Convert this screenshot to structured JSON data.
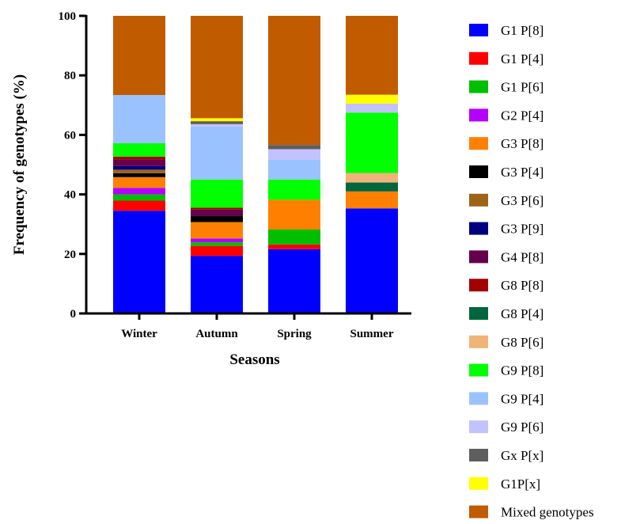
{
  "chart_data": {
    "type": "bar",
    "stacked": true,
    "title": "",
    "xlabel": "Seasons",
    "ylabel": "Frequency of genotypes (%)",
    "ylim": [
      0,
      100
    ],
    "yticks": [
      0,
      20,
      40,
      60,
      80,
      100
    ],
    "categories": [
      "Winter",
      "Autumn",
      "Spring",
      "Summer"
    ],
    "legend_position": "right",
    "grid": false,
    "series": [
      {
        "name": "G1 P[8]",
        "color": "#0000ff",
        "values": [
          34.5,
          19.3,
          21.6,
          35.3
        ]
      },
      {
        "name": "G1 P[4]",
        "color": "#ff0000",
        "values": [
          3.4,
          3.4,
          1.6,
          0
        ]
      },
      {
        "name": "G1 P[6]",
        "color": "#00bf00",
        "values": [
          2.1,
          1.2,
          5.0,
          0
        ]
      },
      {
        "name": "G2 P[4]",
        "color": "#b300ff",
        "values": [
          2.2,
          1.3,
          0,
          0
        ]
      },
      {
        "name": "G3 P[8]",
        "color": "#ff8000",
        "values": [
          3.6,
          5.5,
          10.0,
          5.7
        ]
      },
      {
        "name": "G3 P[4]",
        "color": "#000000",
        "values": [
          1.3,
          2.0,
          0,
          0
        ]
      },
      {
        "name": "G3 P[6]",
        "color": "#9c6418",
        "values": [
          1.2,
          0,
          0,
          0
        ]
      },
      {
        "name": "G3 P[9]",
        "color": "#00007f",
        "values": [
          1.2,
          0,
          0,
          0
        ]
      },
      {
        "name": "G4 P[8]",
        "color": "#66004d",
        "values": [
          2.2,
          2.2,
          0,
          0
        ]
      },
      {
        "name": "G8 P[8]",
        "color": "#a30000",
        "values": [
          1.0,
          0.6,
          0,
          0
        ]
      },
      {
        "name": "G8 P[4]",
        "color": "#00663d",
        "values": [
          0,
          0,
          0,
          3.0
        ]
      },
      {
        "name": "G8 P[6]",
        "color": "#f0b479",
        "values": [
          0,
          0,
          0,
          3.2
        ]
      },
      {
        "name": "G9 P[8]",
        "color": "#00ff00",
        "values": [
          4.5,
          9.5,
          6.8,
          20.3
        ]
      },
      {
        "name": "G9 P[4]",
        "color": "#99c2ff",
        "values": [
          16.2,
          17.8,
          6.6,
          0
        ]
      },
      {
        "name": "G9 P[6]",
        "color": "#c2c2ff",
        "values": [
          0,
          0.8,
          3.6,
          3.0
        ]
      },
      {
        "name": "Gx P[x]",
        "color": "#5e5e5e",
        "values": [
          0,
          1.0,
          1.4,
          0
        ]
      },
      {
        "name": "G1P[x]",
        "color": "#ffff00",
        "values": [
          0,
          1.0,
          0,
          3.0
        ]
      },
      {
        "name": "Mixed genotypes",
        "color": "#c15b00",
        "values": [
          26.6,
          34.4,
          43.4,
          26.5
        ]
      }
    ]
  }
}
